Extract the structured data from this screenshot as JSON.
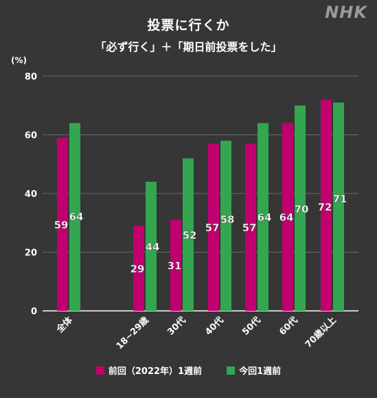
{
  "header": {
    "title": "投票に行くか",
    "subtitle": "「必ず行く」＋「期日前投票をした」",
    "logo": "NHK"
  },
  "colors": {
    "background": "#363636",
    "prev": "#c0006f",
    "curr": "#33a64f",
    "grid": "#6a6a6a"
  },
  "chart_data": {
    "type": "bar",
    "unit_label": "(%)",
    "ylim": [
      0,
      80
    ],
    "yticks": [
      "0",
      "20",
      "40",
      "60",
      "80"
    ],
    "ytick_values": [
      0,
      20,
      40,
      60,
      80
    ],
    "grid": true,
    "legend_position": "bottom",
    "categories": [
      "全体",
      "",
      "18~29歳",
      "30代",
      "40代",
      "50代",
      "60代",
      "70歳以上"
    ],
    "series": [
      {
        "name": "前回（2022年）1週前",
        "values": [
          59,
          null,
          29,
          31,
          57,
          57,
          64,
          72
        ],
        "labels": [
          "59",
          "",
          "29",
          "31",
          "57",
          "57",
          "64",
          "72"
        ]
      },
      {
        "name": "今回1週前",
        "values": [
          64,
          null,
          44,
          52,
          58,
          64,
          70,
          71
        ],
        "labels": [
          "64",
          "",
          "44",
          "52",
          "58",
          "64",
          "70",
          "71"
        ]
      }
    ]
  }
}
